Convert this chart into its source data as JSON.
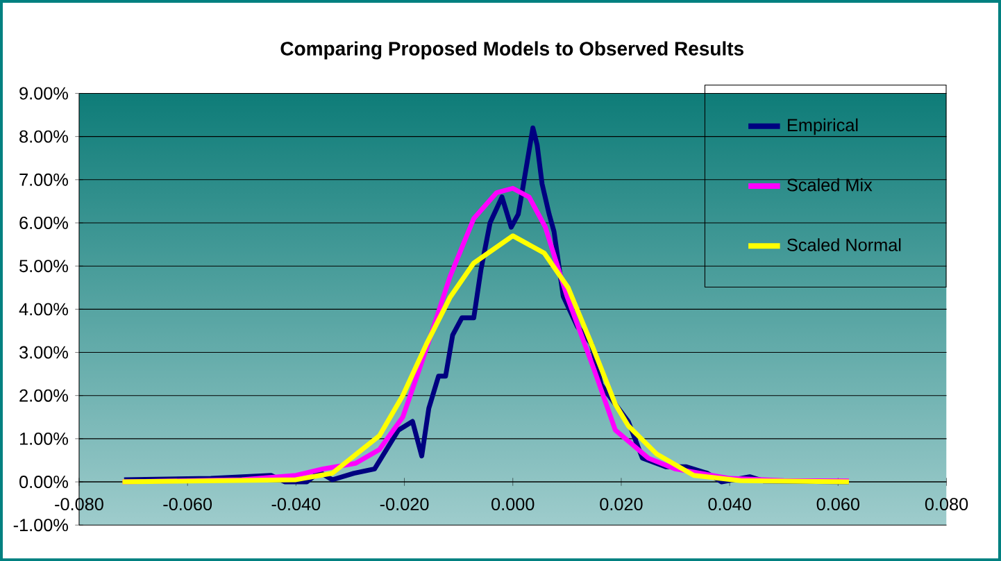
{
  "chart_data": {
    "type": "line",
    "title": "Comparing Proposed Models to Observed Results",
    "xlim": [
      -0.08,
      0.08
    ],
    "xticks": [
      {
        "value": -0.08,
        "label": "-0.080"
      },
      {
        "value": -0.06,
        "label": "-0.060"
      },
      {
        "value": -0.04,
        "label": "-0.040"
      },
      {
        "value": -0.02,
        "label": "-0.020"
      },
      {
        "value": 0,
        "label": "0.000"
      },
      {
        "value": 0.02,
        "label": "0.020"
      },
      {
        "value": 0.04,
        "label": "0.040"
      },
      {
        "value": 0.06,
        "label": "0.060"
      },
      {
        "value": 0.08,
        "label": "0.080"
      }
    ],
    "ylim": [
      -1,
      9
    ],
    "yticks": [
      {
        "value": -1,
        "label": "-1.00%"
      },
      {
        "value": 0,
        "label": "0.00%"
      },
      {
        "value": 1,
        "label": "1.00%"
      },
      {
        "value": 2,
        "label": "2.00%"
      },
      {
        "value": 3,
        "label": "3.00%"
      },
      {
        "value": 4,
        "label": "4.00%"
      },
      {
        "value": 5,
        "label": "5.00%"
      },
      {
        "value": 6,
        "label": "6.00%"
      },
      {
        "value": 7,
        "label": "7.00%"
      },
      {
        "value": 8,
        "label": "8.00%"
      },
      {
        "value": 9,
        "label": "9.00%"
      }
    ],
    "grid": "y",
    "legend": "top right",
    "marker": "none",
    "line_style": "solid",
    "series": [
      {
        "name": "Empirical",
        "color": "#000080",
        "x": [
          -0.0717,
          -0.0557,
          -0.0446,
          -0.042,
          -0.0404,
          -0.038,
          -0.0357,
          -0.0333,
          -0.0293,
          -0.0255,
          -0.0211,
          -0.0185,
          -0.0168,
          -0.0155,
          -0.0137,
          -0.0124,
          -0.0111,
          -0.0094,
          -0.0072,
          -0.0059,
          -0.0042,
          -0.002,
          -0.0003,
          0.001,
          0.0019,
          0.0037,
          0.0045,
          0.0054,
          0.0067,
          0.0076,
          0.0093,
          0.0119,
          0.0145,
          0.0163,
          0.0189,
          0.0213,
          0.0239,
          0.0282,
          0.032,
          0.0359,
          0.0385,
          0.0437,
          0.0463,
          0.054,
          0.062
        ],
        "values": [
          0.05,
          0.08,
          0.15,
          0,
          null,
          0,
          0.23,
          0.05,
          0.2,
          0.3,
          1.2,
          1.4,
          0.6,
          1.7,
          2.45,
          2.45,
          3.4,
          3.8,
          3.8,
          4.9,
          6.0,
          6.6,
          5.9,
          6.2,
          6.85,
          8.2,
          7.8,
          6.9,
          6.2,
          5.8,
          4.3,
          3.6,
          3.2,
          2.25,
          1.8,
          1.4,
          0.55,
          0.35,
          0.35,
          0.2,
          0.0,
          0.12,
          0.02,
          null,
          0
        ]
      },
      {
        "name": "Scaled Mix",
        "color": "#ff00ff",
        "x": [
          -0.072,
          -0.05,
          -0.04,
          -0.035,
          -0.029,
          -0.0246,
          -0.0203,
          -0.0159,
          -0.0116,
          -0.0072,
          -0.003,
          0,
          0.003,
          0.006,
          0.01,
          0.015,
          0.0189,
          0.025,
          0.03,
          0.04,
          0.05,
          0.062
        ],
        "values": [
          0,
          0.05,
          0.15,
          0.3,
          0.43,
          0.75,
          1.5,
          3.1,
          4.75,
          6.1,
          6.7,
          6.8,
          6.6,
          5.9,
          4.3,
          2.6,
          1.2,
          0.55,
          0.3,
          0.08,
          0.03,
          0.02
        ]
      },
      {
        "name": "Scaled Normal",
        "color": "#ffff00",
        "x": [
          -0.072,
          -0.04,
          -0.0333,
          -0.0246,
          -0.0203,
          -0.0159,
          -0.0116,
          -0.0072,
          0,
          0.0058,
          0.0102,
          0.0145,
          0.0189,
          0.0213,
          0.0265,
          0.0334,
          0.042,
          0.062
        ],
        "values": [
          0,
          0.05,
          0.2,
          1.07,
          2.0,
          3.2,
          4.27,
          5.07,
          5.7,
          5.3,
          4.5,
          3.2,
          1.8,
          1.3,
          0.65,
          0.15,
          0.03,
          0
        ]
      }
    ]
  }
}
